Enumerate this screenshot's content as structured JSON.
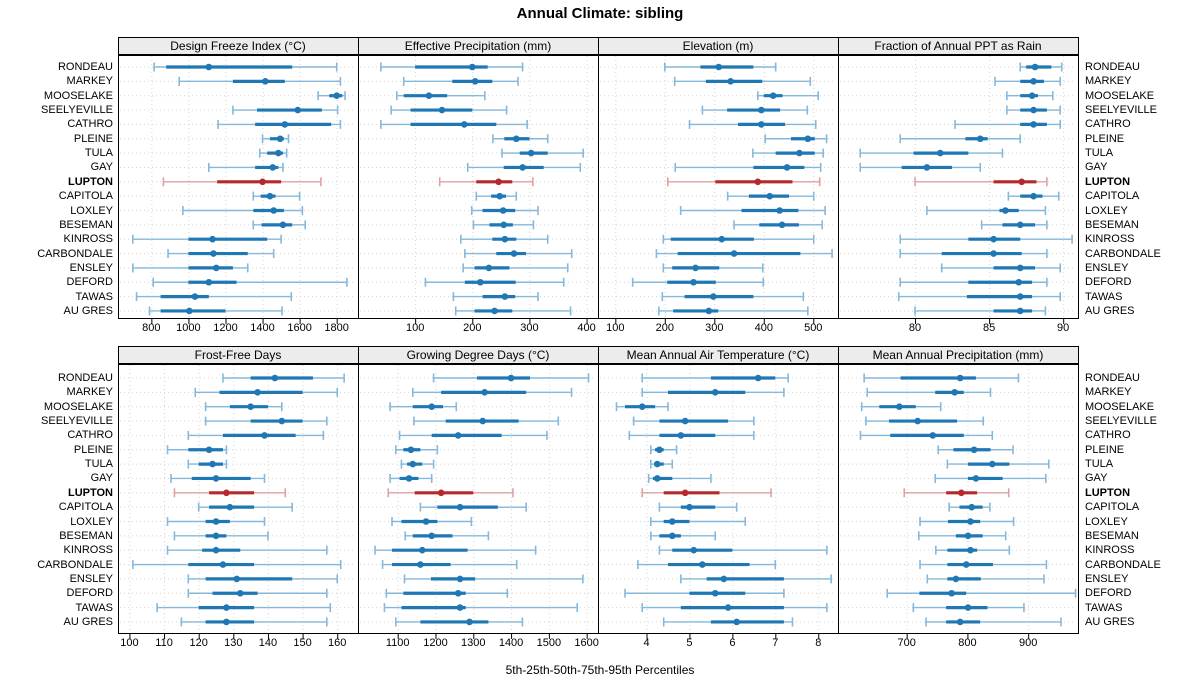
{
  "title": "Annual Climate: sibling",
  "footer": "5th-25th-50th-75th-95th Percentiles",
  "highlight_station": "LUPTON",
  "stations": [
    "RONDEAU",
    "MARKEY",
    "MOOSELAKE",
    "SEELYEVILLE",
    "CATHRO",
    "PLEINE",
    "TULA",
    "GAY",
    "LUPTON",
    "CAPITOLA",
    "LOXLEY",
    "BESEMAN",
    "KINROSS",
    "CARBONDALE",
    "ENSLEY",
    "DEFORD",
    "TAWAS",
    "AU GRES"
  ],
  "percentile_labels": [
    "5th",
    "25th",
    "50th",
    "75th",
    "95th"
  ],
  "colors": {
    "blue": "#1f77b4",
    "blue_light": "#85b8da",
    "red": "#b5282c",
    "red_light": "#e0a0a0",
    "grid": "#d4d4d4",
    "strip_bg": "#ececec",
    "border": "#000000"
  },
  "chart_data": [
    {
      "type": "interval-dotplot",
      "title": "Design Freeze Index (°C)",
      "row": 0,
      "col": 0,
      "ticks": [
        800,
        1000,
        1200,
        1400,
        1600,
        1800
      ],
      "xlim": [
        620,
        1915
      ],
      "values": [
        [
          815,
          880,
          1110,
          1560,
          1800
        ],
        [
          950,
          1240,
          1415,
          1520,
          1820
        ],
        [
          1700,
          1760,
          1800,
          1830,
          1845
        ],
        [
          1240,
          1370,
          1590,
          1720,
          1805
        ],
        [
          1160,
          1360,
          1520,
          1770,
          1820
        ],
        [
          1400,
          1440,
          1495,
          1515,
          1540
        ],
        [
          1385,
          1425,
          1485,
          1510,
          1530
        ],
        [
          1110,
          1360,
          1455,
          1485,
          1510
        ],
        [
          865,
          1155,
          1400,
          1500,
          1715
        ],
        [
          1350,
          1390,
          1440,
          1470,
          1600
        ],
        [
          970,
          1350,
          1460,
          1515,
          1615
        ],
        [
          1350,
          1395,
          1510,
          1560,
          1630
        ],
        [
          700,
          1000,
          1130,
          1425,
          1500
        ],
        [
          890,
          1000,
          1135,
          1320,
          1460
        ],
        [
          700,
          1000,
          1150,
          1240,
          1320
        ],
        [
          810,
          1000,
          1110,
          1260,
          1855
        ],
        [
          720,
          850,
          1035,
          1110,
          1555
        ],
        [
          790,
          850,
          1005,
          1200,
          1505
        ]
      ]
    },
    {
      "type": "interval-dotplot",
      "title": "Effective Precipitation (mm)",
      "row": 0,
      "col": 1,
      "ticks": [
        100,
        200,
        300,
        400
      ],
      "xlim": [
        0,
        420
      ],
      "values": [
        [
          40,
          100,
          200,
          227,
          288
        ],
        [
          80,
          165,
          205,
          235,
          280
        ],
        [
          68,
          80,
          124,
          156,
          222
        ],
        [
          58,
          92,
          147,
          200,
          260
        ],
        [
          40,
          92,
          186,
          242,
          296
        ],
        [
          236,
          256,
          277,
          300,
          332
        ],
        [
          252,
          283,
          303,
          332,
          394
        ],
        [
          192,
          255,
          288,
          325,
          389
        ],
        [
          143,
          207,
          246,
          270,
          306
        ],
        [
          207,
          233,
          248,
          259,
          277
        ],
        [
          199,
          218,
          254,
          275,
          315
        ],
        [
          202,
          230,
          255,
          271,
          307
        ],
        [
          180,
          235,
          257,
          277,
          332
        ],
        [
          187,
          242,
          273,
          294,
          374
        ],
        [
          184,
          204,
          229,
          265,
          367
        ],
        [
          118,
          187,
          214,
          276,
          360
        ],
        [
          167,
          218,
          257,
          275,
          315
        ],
        [
          171,
          204,
          239,
          270,
          372
        ]
      ]
    },
    {
      "type": "interval-dotplot",
      "title": "Elevation (m)",
      "row": 0,
      "col": 2,
      "ticks": [
        100,
        200,
        300,
        400,
        500
      ],
      "xlim": [
        65,
        550
      ],
      "values": [
        [
          200,
          272,
          309,
          379,
          424
        ],
        [
          220,
          283,
          333,
          397,
          494
        ],
        [
          388,
          400,
          419,
          438,
          510
        ],
        [
          276,
          326,
          395,
          433,
          488
        ],
        [
          250,
          348,
          395,
          443,
          505
        ],
        [
          403,
          455,
          489,
          503,
          527
        ],
        [
          378,
          424,
          472,
          503,
          520
        ],
        [
          221,
          379,
          447,
          482,
          515
        ],
        [
          206,
          302,
          388,
          458,
          513
        ],
        [
          327,
          370,
          412,
          451,
          501
        ],
        [
          232,
          355,
          432,
          470,
          524
        ],
        [
          340,
          391,
          437,
          471,
          518
        ],
        [
          197,
          212,
          315,
          380,
          501
        ],
        [
          183,
          226,
          340,
          474,
          538
        ],
        [
          197,
          215,
          262,
          310,
          398
        ],
        [
          135,
          205,
          258,
          303,
          399
        ],
        [
          195,
          240,
          298,
          379,
          480
        ],
        [
          188,
          217,
          289,
          308,
          489
        ]
      ]
    },
    {
      "type": "interval-dotplot",
      "title": "Fraction of Annual PPT as Rain",
      "row": 0,
      "col": 3,
      "ticks": [
        80,
        85,
        90
      ],
      "xlim": [
        74.8,
        91.0
      ],
      "values": [
        [
          87.1,
          87.5,
          88.1,
          89.2,
          89.9
        ],
        [
          85.4,
          87.1,
          88.0,
          88.7,
          89.8
        ],
        [
          86.2,
          87.1,
          87.9,
          88.3,
          89.3
        ],
        [
          86.2,
          87.1,
          88.0,
          88.9,
          89.8
        ],
        [
          82.7,
          87.1,
          88.0,
          88.9,
          89.8
        ],
        [
          79.0,
          83.4,
          84.4,
          84.9,
          87.1
        ],
        [
          76.3,
          79.9,
          81.7,
          83.6,
          85.9
        ],
        [
          76.3,
          79.1,
          80.8,
          82.5,
          84.4
        ],
        [
          80.0,
          85.3,
          87.2,
          88.2,
          88.9
        ],
        [
          86.3,
          87.1,
          88.0,
          88.6,
          89.7
        ],
        [
          80.8,
          85.7,
          86.1,
          87.0,
          88.8
        ],
        [
          84.5,
          85.9,
          87.1,
          88.1,
          88.9
        ],
        [
          79.0,
          83.6,
          85.3,
          87.1,
          90.6
        ],
        [
          79.0,
          81.8,
          85.3,
          87.2,
          88.9
        ],
        [
          81.8,
          85.3,
          87.1,
          88.1,
          89.8
        ],
        [
          79.0,
          83.6,
          87.0,
          87.9,
          88.9
        ],
        [
          78.9,
          83.5,
          87.1,
          87.9,
          89.8
        ],
        [
          80.0,
          85.3,
          87.1,
          87.9,
          88.8
        ]
      ]
    },
    {
      "type": "interval-dotplot",
      "title": "Frost-Free Days",
      "row": 1,
      "col": 0,
      "ticks": [
        100,
        110,
        120,
        130,
        140,
        150,
        160
      ],
      "xlim": [
        96.7,
        166
      ],
      "values": [
        [
          127,
          135,
          142,
          153,
          162
        ],
        [
          119,
          126,
          137,
          150,
          160
        ],
        [
          122,
          129,
          135,
          140,
          144
        ],
        [
          122,
          135,
          144,
          150,
          157
        ],
        [
          117,
          127,
          139,
          148,
          156
        ],
        [
          111,
          117,
          123,
          127,
          128
        ],
        [
          117,
          120,
          124,
          127,
          128
        ],
        [
          112,
          118,
          125,
          135,
          139
        ],
        [
          113,
          123,
          128,
          136,
          145
        ],
        [
          120,
          123,
          129,
          136,
          147
        ],
        [
          111,
          122,
          125,
          129,
          139
        ],
        [
          113,
          122,
          125,
          128,
          140
        ],
        [
          111,
          121,
          125,
          132,
          157
        ],
        [
          101,
          117,
          127,
          136,
          161
        ],
        [
          117,
          122,
          131,
          147,
          160
        ],
        [
          117,
          124,
          132,
          137,
          157
        ],
        [
          108,
          120,
          128,
          136,
          158
        ],
        [
          115,
          122,
          128,
          136,
          157
        ]
      ]
    },
    {
      "type": "interval-dotplot",
      "title": "Growing Degree Days (°C)",
      "row": 1,
      "col": 1,
      "ticks": [
        1100,
        1200,
        1300,
        1400,
        1500,
        1600
      ],
      "xlim": [
        995,
        1630
      ],
      "values": [
        [
          1195,
          1310,
          1400,
          1450,
          1605
        ],
        [
          1140,
          1215,
          1330,
          1440,
          1560
        ],
        [
          1080,
          1140,
          1190,
          1220,
          1255
        ],
        [
          1143,
          1227,
          1325,
          1420,
          1525
        ],
        [
          1105,
          1190,
          1260,
          1375,
          1495
        ],
        [
          1095,
          1115,
          1135,
          1160,
          1205
        ],
        [
          1110,
          1125,
          1140,
          1165,
          1195
        ],
        [
          1080,
          1105,
          1130,
          1155,
          1190
        ],
        [
          1075,
          1145,
          1215,
          1300,
          1405
        ],
        [
          1160,
          1205,
          1265,
          1365,
          1440
        ],
        [
          1085,
          1110,
          1175,
          1205,
          1295
        ],
        [
          1120,
          1140,
          1190,
          1245,
          1340
        ],
        [
          1040,
          1085,
          1165,
          1285,
          1465
        ],
        [
          1060,
          1085,
          1160,
          1240,
          1415
        ],
        [
          1118,
          1188,
          1265,
          1305,
          1590
        ],
        [
          1070,
          1115,
          1260,
          1280,
          1390
        ],
        [
          1065,
          1110,
          1265,
          1280,
          1575
        ],
        [
          1095,
          1160,
          1290,
          1340,
          1430
        ]
      ]
    },
    {
      "type": "interval-dotplot",
      "title": "Mean Annual Air Temperature (°C)",
      "row": 1,
      "col": 2,
      "ticks": [
        4,
        5,
        6,
        7,
        8
      ],
      "xlim": [
        2.87,
        8.46
      ],
      "values": [
        [
          3.9,
          5.5,
          6.6,
          7.0,
          7.3
        ],
        [
          3.9,
          4.5,
          5.6,
          6.3,
          7.2
        ],
        [
          3.3,
          3.5,
          3.9,
          4.2,
          4.5
        ],
        [
          3.7,
          4.3,
          4.9,
          5.9,
          6.5
        ],
        [
          3.6,
          4.3,
          4.8,
          5.6,
          6.5
        ],
        [
          4.1,
          4.2,
          4.3,
          4.4,
          4.7
        ],
        [
          4.1,
          4.2,
          4.25,
          4.4,
          4.6
        ],
        [
          4.05,
          4.15,
          4.25,
          4.6,
          5.5
        ],
        [
          3.9,
          4.4,
          4.9,
          5.7,
          6.9
        ],
        [
          4.3,
          4.8,
          5.0,
          5.6,
          6.1
        ],
        [
          4.1,
          4.4,
          4.6,
          5.0,
          6.3
        ],
        [
          4.1,
          4.3,
          4.6,
          4.8,
          5.6
        ],
        [
          4.3,
          4.6,
          5.1,
          6.0,
          8.2
        ],
        [
          3.8,
          4.5,
          5.3,
          6.4,
          7.0
        ],
        [
          4.8,
          5.4,
          5.8,
          7.2,
          8.3
        ],
        [
          3.5,
          5.0,
          5.6,
          6.3,
          7.2
        ],
        [
          3.9,
          4.8,
          5.9,
          7.2,
          8.2
        ],
        [
          4.4,
          5.5,
          6.1,
          7.2,
          7.4
        ]
      ]
    },
    {
      "type": "interval-dotplot",
      "title": "Mean Annual Precipitation (mm)",
      "row": 1,
      "col": 3,
      "ticks": [
        700,
        800,
        900
      ],
      "xlim": [
        587,
        982
      ],
      "values": [
        [
          630,
          690,
          788,
          814,
          884
        ],
        [
          635,
          747,
          779,
          794,
          838
        ],
        [
          626,
          655,
          688,
          715,
          756
        ],
        [
          633,
          671,
          718,
          783,
          826
        ],
        [
          624,
          673,
          743,
          794,
          841
        ],
        [
          752,
          777,
          811,
          838,
          875
        ],
        [
          767,
          801,
          841,
          869,
          934
        ],
        [
          747,
          801,
          814,
          858,
          929
        ],
        [
          696,
          765,
          790,
          816,
          868
        ],
        [
          770,
          787,
          807,
          825,
          837
        ],
        [
          722,
          768,
          805,
          821,
          876
        ],
        [
          720,
          781,
          801,
          825,
          863
        ],
        [
          748,
          767,
          805,
          816,
          869
        ],
        [
          722,
          767,
          798,
          842,
          930
        ],
        [
          734,
          767,
          781,
          822,
          926
        ],
        [
          668,
          721,
          774,
          798,
          978
        ],
        [
          711,
          765,
          801,
          833,
          893
        ],
        [
          732,
          765,
          788,
          821,
          954
        ]
      ]
    }
  ]
}
